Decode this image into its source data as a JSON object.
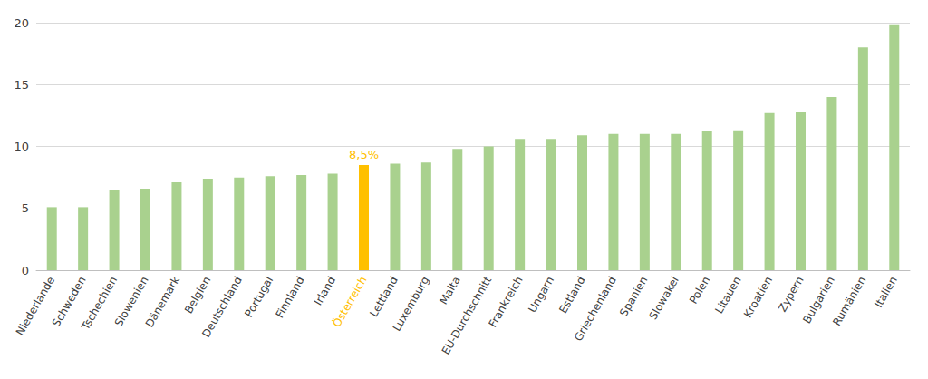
{
  "chart_data": {
    "type": "bar",
    "categories": [
      "Niederlande",
      "Schweden",
      "Tschechien",
      "Slowenien",
      "Dänemark",
      "Belgien",
      "Deutschland",
      "Portugal",
      "Finnland",
      "Irland",
      "Österreich",
      "Lettland",
      "Luxemburg",
      "Malta",
      "EU-Durchschnitt",
      "Frankreich",
      "Ungarn",
      "Estland",
      "Griechenland",
      "Spanien",
      "Slowakei",
      "Polen",
      "Litauen",
      "Kroatien",
      "Zypern",
      "Bulgarien",
      "Rumänien",
      "Italien"
    ],
    "values": [
      5.1,
      5.1,
      6.5,
      6.6,
      7.1,
      7.4,
      7.5,
      7.6,
      7.7,
      7.8,
      8.5,
      8.6,
      8.7,
      9.8,
      10.0,
      10.6,
      10.6,
      10.9,
      11.0,
      11.0,
      11.0,
      11.2,
      11.3,
      12.7,
      12.8,
      14.0,
      18.0,
      19.8
    ],
    "value_labels": [
      null,
      null,
      null,
      null,
      null,
      null,
      null,
      null,
      null,
      null,
      "8,5%",
      null,
      null,
      null,
      null,
      null,
      null,
      null,
      null,
      null,
      null,
      null,
      null,
      null,
      null,
      null,
      null,
      null
    ],
    "data_labels": true,
    "color": "#a9d18e",
    "colors": [
      "#a9d18e",
      "#a9d18e",
      "#a9d18e",
      "#a9d18e",
      "#a9d18e",
      "#a9d18e",
      "#a9d18e",
      "#a9d18e",
      "#a9d18e",
      "#a9d18e",
      "#ffc000",
      "#a9d18e",
      "#a9d18e",
      "#a9d18e",
      "#a9d18e",
      "#a9d18e",
      "#a9d18e",
      "#a9d18e",
      "#a9d18e",
      "#a9d18e",
      "#a9d18e",
      "#a9d18e",
      "#a9d18e",
      "#a9d18e",
      "#a9d18e",
      "#a9d18e",
      "#a9d18e",
      "#a9d18e"
    ],
    "ylim": [
      0,
      20
    ],
    "yticks": [
      0,
      5,
      10,
      15,
      20
    ],
    "grid": true
  }
}
